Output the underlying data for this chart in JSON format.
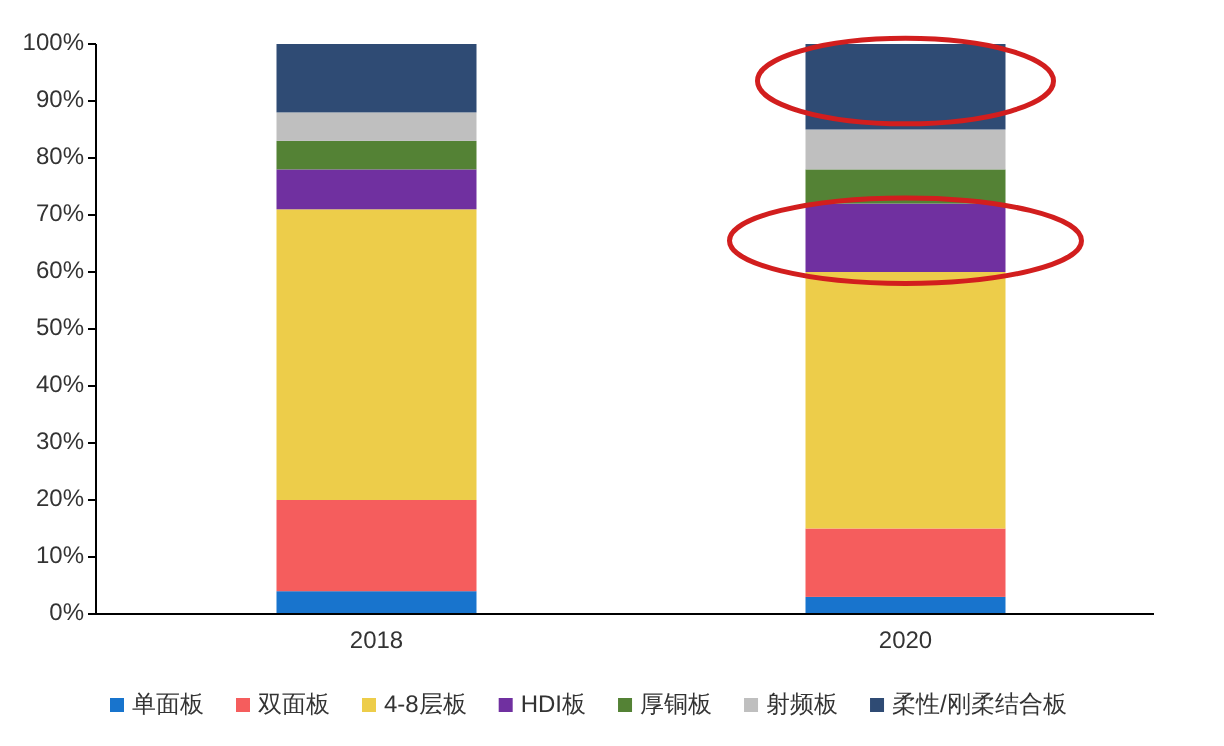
{
  "chart_data": {
    "type": "bar",
    "stacked": true,
    "categories": [
      "2018",
      "2020"
    ],
    "series": [
      {
        "name": "单面板",
        "color": "#1874cd",
        "values": [
          4,
          3
        ]
      },
      {
        "name": "双面板",
        "color": "#f55d5d",
        "values": [
          16,
          12
        ]
      },
      {
        "name": "4-8层板",
        "color": "#edcd4a",
        "values": [
          51,
          45
        ]
      },
      {
        "name": "HDI板",
        "color": "#7030a0",
        "values": [
          7,
          12
        ]
      },
      {
        "name": "厚铜板",
        "color": "#548235",
        "values": [
          5,
          6
        ]
      },
      {
        "name": "射频板",
        "color": "#bfbfbf",
        "values": [
          5,
          7
        ]
      },
      {
        "name": "柔性/刚柔结合板",
        "color": "#2f4b74",
        "values": [
          12,
          15
        ]
      }
    ],
    "ylim": [
      0,
      100
    ],
    "yticks": [
      {
        "value": 0,
        "label": "0%"
      },
      {
        "value": 10,
        "label": "10%"
      },
      {
        "value": 20,
        "label": "20%"
      },
      {
        "value": 30,
        "label": "30%"
      },
      {
        "value": 40,
        "label": "40%"
      },
      {
        "value": 50,
        "label": "50%"
      },
      {
        "value": 60,
        "label": "60%"
      },
      {
        "value": 70,
        "label": "70%"
      },
      {
        "value": 80,
        "label": "80%"
      },
      {
        "value": 90,
        "label": "90%"
      },
      {
        "value": 100,
        "label": "100%"
      }
    ],
    "grid": false,
    "legend": "bottom"
  }
}
